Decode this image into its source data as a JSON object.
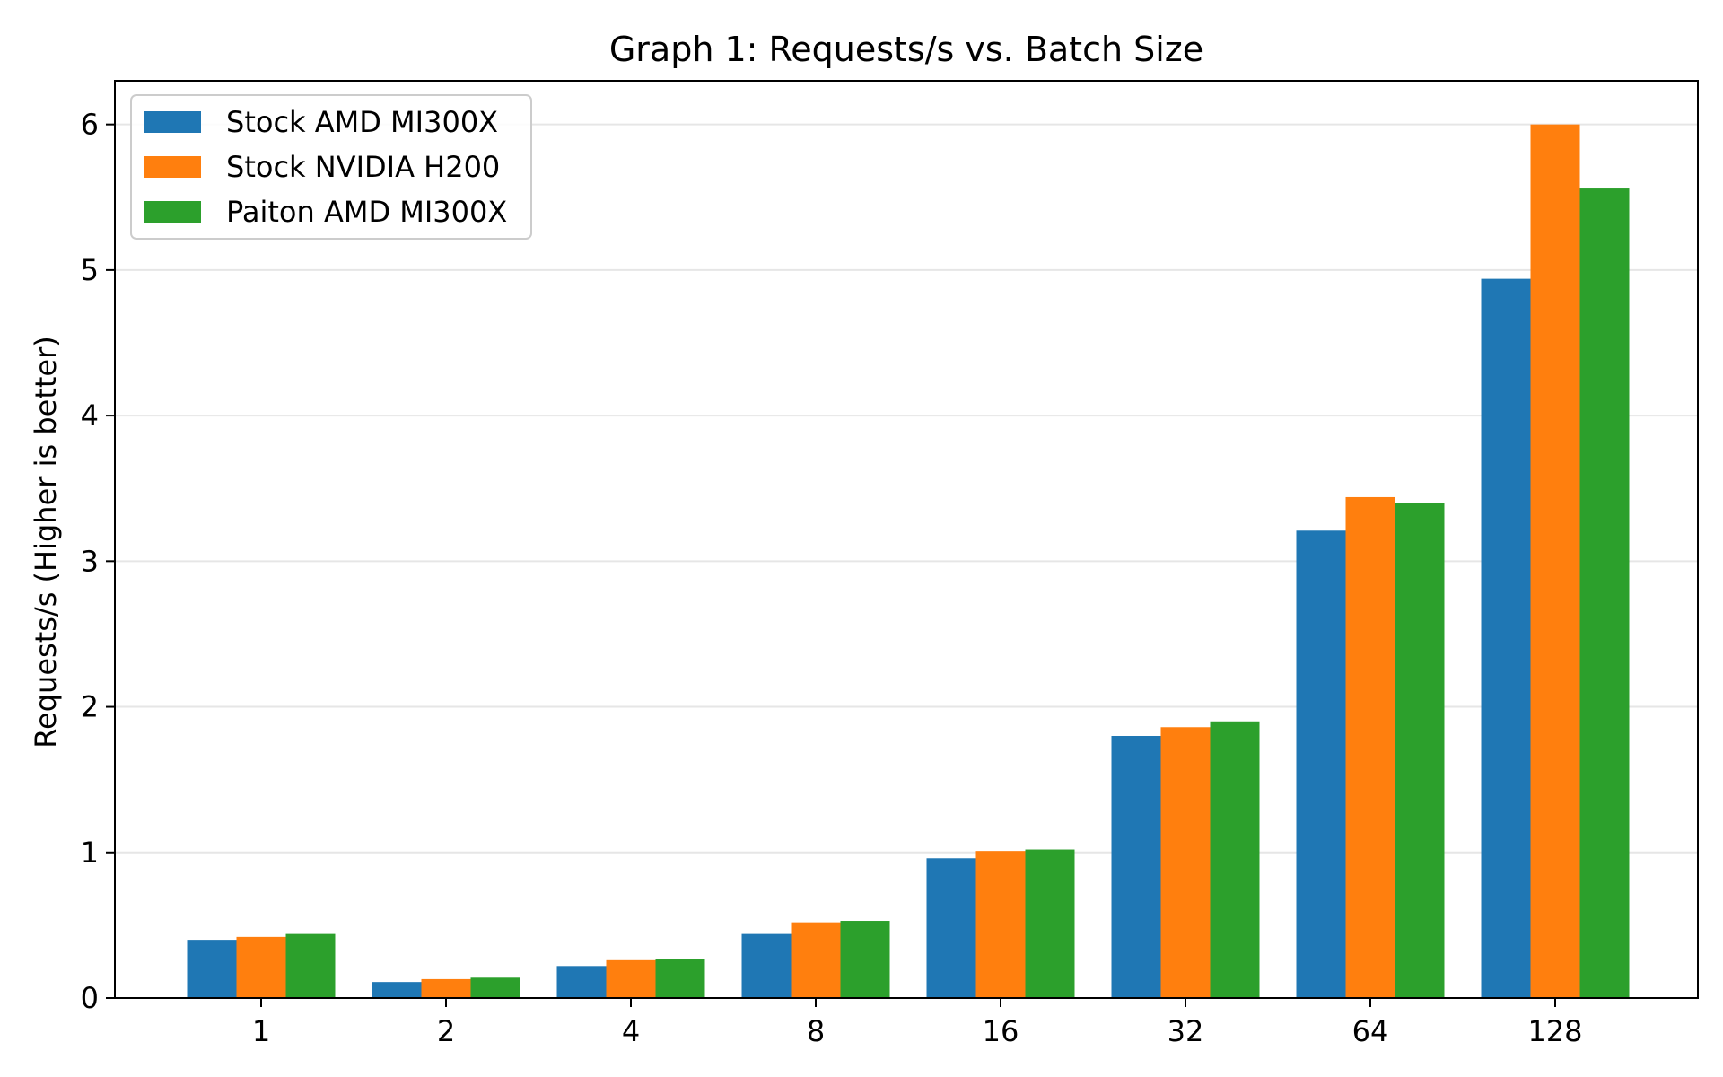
{
  "chart_data": {
    "type": "bar",
    "title": "Graph 1: Requests/s vs. Batch Size",
    "xlabel": "",
    "ylabel": "Requests/s (Higher is better)",
    "categories": [
      "1",
      "2",
      "4",
      "8",
      "16",
      "32",
      "64",
      "128"
    ],
    "ylim": [
      0,
      6.3
    ],
    "yticks": [
      0,
      1,
      2,
      3,
      4,
      5,
      6
    ],
    "grid": "horizontal",
    "legend_position": "top-left",
    "series": [
      {
        "name": "Stock AMD MI300X",
        "color": "#1f77b4",
        "values": [
          0.4,
          0.11,
          0.22,
          0.44,
          0.96,
          1.8,
          3.21,
          4.94
        ]
      },
      {
        "name": "Stock NVIDIA H200",
        "color": "#ff7f0e",
        "values": [
          0.42,
          0.13,
          0.26,
          0.52,
          1.01,
          1.86,
          3.44,
          6.0
        ]
      },
      {
        "name": "Paiton AMD MI300X",
        "color": "#2ca02c",
        "values": [
          0.44,
          0.14,
          0.27,
          0.53,
          1.02,
          1.9,
          3.4,
          5.56
        ]
      }
    ]
  }
}
